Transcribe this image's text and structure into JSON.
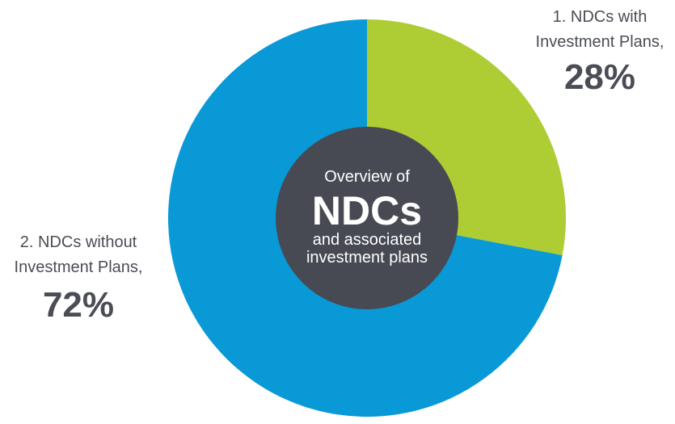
{
  "chart_data": {
    "type": "pie",
    "title": "",
    "center": {
      "line1": "Overview of",
      "line2": "NDCs",
      "line3": "and associated",
      "line4": "investment plans"
    },
    "slices": [
      {
        "label_line1": "1. NDCs with",
        "label_line2": "Investment Plans,",
        "value": 28,
        "value_label": "28%",
        "color": "#aecc33"
      },
      {
        "label_line1": "2. NDCs without",
        "label_line2": "Investment Plans,",
        "value": 72,
        "value_label": "72%",
        "color": "#0999d6"
      }
    ],
    "center_color": "#474a52"
  }
}
